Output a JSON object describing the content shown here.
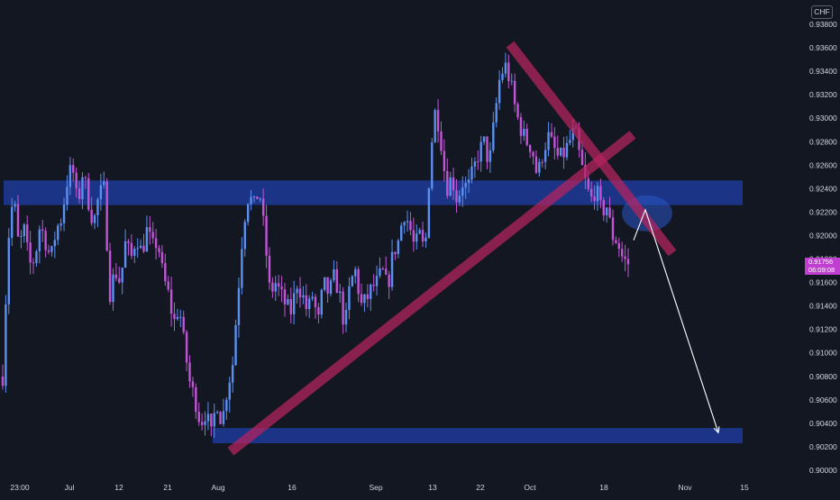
{
  "currency_label": "CHF",
  "last_price": {
    "price": "0.91756",
    "countdown": "06:09:08"
  },
  "colors": {
    "background": "#131722",
    "candle_blue": "#5b8ff0",
    "candle_magenta": "#c155d6",
    "blue_zone": "#1f3fa8",
    "trend_magenta": "#b8245f",
    "price_tag": "#c13fd0",
    "arrow": "#ffffff"
  },
  "chart_data": {
    "type": "candlestick",
    "symbol_currency": "CHF",
    "ylim": [
      0.9,
      0.939
    ],
    "y_ticks": [
      "0.90000",
      "0.90200",
      "0.90400",
      "0.90600",
      "0.90800",
      "0.91000",
      "0.91200",
      "0.91400",
      "0.91600",
      "0.91800",
      "0.92000",
      "0.92200",
      "0.92400",
      "0.92600",
      "0.92800",
      "0.93000",
      "0.93200",
      "0.93400",
      "0.93600",
      "0.93800"
    ],
    "x_ticks": [
      "23:00",
      "Jul",
      "12",
      "21",
      "Aug",
      "16",
      "Sep",
      "13",
      "22",
      "Oct",
      "18",
      "Nov",
      "15"
    ],
    "price_path": [
      [
        0.908,
        0.9195,
        0.9235,
        0.919,
        0.9205,
        0.9175,
        0.918,
        0.921,
        0.9195,
        0.918,
        0.9205,
        0.9215
      ],
      [
        0.9245,
        0.926,
        0.9225,
        0.9255,
        0.923,
        0.921
      ],
      [
        0.9235,
        0.924,
        0.915,
        0.917,
        0.916,
        0.9195,
        0.918,
        0.92,
        0.9185,
        0.9205,
        0.919,
        0.9195
      ],
      [
        0.9165,
        0.915,
        0.9125,
        0.914,
        0.9105,
        0.9075,
        0.906,
        0.904,
        0.905,
        0.903,
        0.906,
        0.904,
        0.907
      ],
      [
        0.909,
        0.915,
        0.921,
        0.9235,
        0.9225,
        0.924,
        0.92,
        0.915,
        0.916,
        0.915,
        0.914,
        0.9135
      ],
      [
        0.916,
        0.915,
        0.9135,
        0.915,
        0.9125,
        0.916,
        0.915,
        0.9165,
        0.915,
        0.912,
        0.916,
        0.917,
        0.914
      ],
      [
        0.9145,
        0.9155,
        0.916,
        0.917,
        0.9155,
        0.9185,
        0.9195,
        0.922,
        0.921,
        0.919,
        0.92,
        0.9185
      ],
      [
        0.927,
        0.931,
        0.928,
        0.924,
        0.925,
        0.923,
        0.9245,
        0.924,
        0.9255,
        0.927,
        0.928,
        0.926
      ],
      [
        0.93,
        0.9335,
        0.9345,
        0.933,
        0.9305,
        0.929,
        0.928,
        0.9275,
        0.925,
        0.927
      ],
      [
        0.9285,
        0.9275,
        0.9265,
        0.927,
        0.928,
        0.929,
        0.9265,
        0.9245,
        0.923,
        0.924,
        0.922,
        0.9225,
        0.92,
        0.9195,
        0.918,
        0.91756
      ]
    ],
    "zones": [
      {
        "label": "",
        "y_low": 0.9226,
        "y_high": 0.9247
      },
      {
        "label": "",
        "y_low": 0.9023,
        "y_high": 0.9036
      }
    ],
    "projection": {
      "from": 0.9196,
      "peak": 0.9222,
      "target": 0.9032
    },
    "grid": false,
    "legend": "none"
  }
}
